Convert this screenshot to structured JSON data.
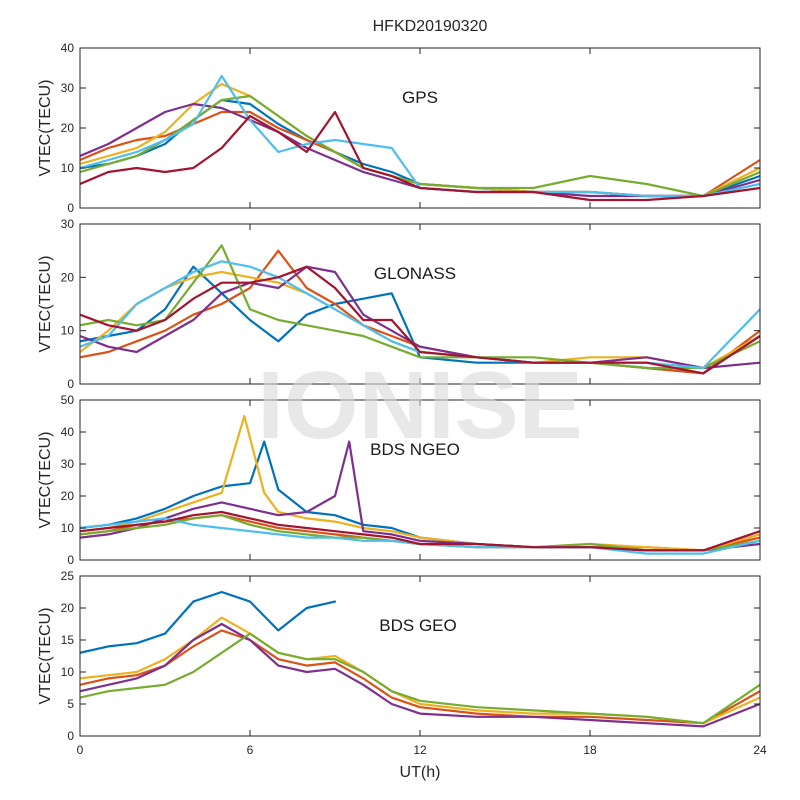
{
  "figure": {
    "title": "HFKD20190320",
    "watermark": "IONISE",
    "xlabel": "UT(h)",
    "xlim": [
      0,
      24
    ],
    "xticks": [
      0,
      6,
      12,
      18,
      24
    ]
  },
  "chart_data": [
    {
      "type": "line",
      "panel_label": "GPS",
      "ylabel": "VTEC(TECU)",
      "ylim": [
        0,
        40
      ],
      "yticks": [
        0,
        10,
        20,
        30,
        40
      ],
      "series": [
        {
          "color": "#0072BD",
          "x": [
            0,
            1,
            2,
            3,
            4,
            5,
            6,
            7,
            8,
            9,
            10,
            11,
            12,
            14,
            16,
            18,
            20,
            22,
            24
          ],
          "y": [
            10,
            11,
            13,
            16,
            22,
            27,
            26,
            21,
            17,
            14,
            11,
            9,
            6,
            5,
            4,
            4,
            3,
            3,
            8
          ]
        },
        {
          "color": "#D95319",
          "x": [
            0,
            1,
            2,
            3,
            4,
            5,
            6,
            7,
            8,
            9,
            10,
            11,
            12,
            14,
            16,
            18,
            20,
            22,
            24
          ],
          "y": [
            12,
            15,
            17,
            18,
            21,
            24,
            24,
            20,
            17,
            14,
            10,
            8,
            6,
            5,
            4,
            4,
            3,
            3,
            12
          ]
        },
        {
          "color": "#EDB120",
          "x": [
            0,
            1,
            2,
            3,
            4,
            5,
            6,
            7,
            8,
            9,
            10,
            11,
            12,
            14,
            16,
            18,
            20,
            22,
            24
          ],
          "y": [
            11,
            13,
            15,
            19,
            26,
            31,
            28,
            23,
            18,
            14,
            10,
            8,
            6,
            5,
            4,
            4,
            3,
            3,
            10
          ]
        },
        {
          "color": "#7E2F8E",
          "x": [
            0,
            1,
            2,
            3,
            4,
            5,
            6,
            7,
            8,
            9,
            10,
            11,
            12,
            14,
            16,
            18,
            20,
            22,
            24
          ],
          "y": [
            13,
            16,
            20,
            24,
            26,
            25,
            22,
            19,
            15,
            12,
            9,
            7,
            5,
            4,
            4,
            3,
            3,
            3,
            7
          ]
        },
        {
          "color": "#77AC30",
          "x": [
            0,
            1,
            2,
            3,
            4,
            5,
            6,
            7,
            8,
            9,
            10,
            11,
            12,
            14,
            16,
            18,
            20,
            22,
            24
          ],
          "y": [
            9,
            11,
            13,
            17,
            22,
            27,
            28,
            23,
            18,
            14,
            10,
            8,
            6,
            5,
            5,
            8,
            6,
            3,
            9
          ]
        },
        {
          "color": "#4DBEEE",
          "x": [
            0,
            1,
            2,
            3,
            4,
            5,
            6,
            7,
            8,
            9,
            10,
            11,
            12,
            14,
            16,
            18,
            20,
            22,
            24
          ],
          "y": [
            10,
            12,
            14,
            17,
            21,
            33,
            22,
            14,
            16,
            17,
            16,
            15,
            5,
            4,
            4,
            4,
            3,
            3,
            6
          ]
        },
        {
          "color": "#A2142F",
          "x": [
            0,
            1,
            2,
            3,
            4,
            5,
            6,
            7,
            8,
            9,
            10,
            11,
            12,
            14,
            16,
            18,
            20,
            22,
            24
          ],
          "y": [
            6,
            9,
            10,
            9,
            10,
            15,
            23,
            19,
            14,
            24,
            10,
            8,
            5,
            4,
            4,
            2,
            2,
            3,
            5
          ]
        }
      ]
    },
    {
      "type": "line",
      "panel_label": "GLONASS",
      "ylabel": "VTEC(TECU)",
      "ylim": [
        0,
        30
      ],
      "yticks": [
        0,
        10,
        20,
        30
      ],
      "series": [
        {
          "color": "#0072BD",
          "x": [
            0,
            1,
            2,
            3,
            4,
            5,
            6,
            7,
            8,
            9,
            10,
            11,
            12,
            14,
            16,
            18,
            20,
            22,
            24
          ],
          "y": [
            8,
            9,
            10,
            14,
            22,
            17,
            12,
            8,
            13,
            15,
            16,
            17,
            5,
            4,
            4,
            4,
            3,
            2,
            9
          ]
        },
        {
          "color": "#D95319",
          "x": [
            0,
            1,
            2,
            3,
            4,
            5,
            6,
            7,
            8,
            9,
            10,
            11,
            12,
            14,
            16,
            18,
            20,
            22,
            24
          ],
          "y": [
            5,
            6,
            8,
            10,
            13,
            15,
            18,
            25,
            18,
            15,
            11,
            9,
            7,
            5,
            4,
            4,
            3,
            2,
            10
          ]
        },
        {
          "color": "#EDB120",
          "x": [
            0,
            1,
            2,
            3,
            4,
            5,
            6,
            7,
            8,
            9,
            10,
            11,
            12,
            14,
            16,
            18,
            20,
            22,
            24
          ],
          "y": [
            6,
            10,
            15,
            18,
            20,
            21,
            20,
            19,
            17,
            14,
            11,
            8,
            6,
            5,
            4,
            5,
            5,
            3,
            9
          ]
        },
        {
          "color": "#7E2F8E",
          "x": [
            0,
            1,
            2,
            3,
            4,
            5,
            6,
            7,
            8,
            9,
            10,
            11,
            12,
            14,
            16,
            18,
            20,
            22,
            24
          ],
          "y": [
            9,
            7,
            6,
            9,
            12,
            17,
            19,
            18,
            22,
            21,
            13,
            10,
            7,
            5,
            4,
            4,
            5,
            3,
            4
          ]
        },
        {
          "color": "#77AC30",
          "x": [
            0,
            1,
            2,
            3,
            4,
            5,
            6,
            7,
            8,
            9,
            10,
            11,
            12,
            14,
            16,
            18,
            20,
            22,
            24
          ],
          "y": [
            11,
            12,
            11,
            12,
            19,
            26,
            14,
            12,
            11,
            10,
            9,
            7,
            5,
            5,
            5,
            4,
            3,
            3,
            8
          ]
        },
        {
          "color": "#4DBEEE",
          "x": [
            0,
            1,
            2,
            3,
            4,
            5,
            6,
            7,
            8,
            9,
            10,
            11,
            12,
            14,
            16,
            18,
            20,
            22,
            24
          ],
          "y": [
            7,
            9,
            15,
            18,
            21,
            23,
            22,
            20,
            17,
            14,
            11,
            8,
            6,
            5,
            4,
            4,
            4,
            3,
            14
          ]
        },
        {
          "color": "#A2142F",
          "x": [
            0,
            1,
            2,
            3,
            4,
            5,
            6,
            7,
            8,
            9,
            10,
            11,
            12,
            14,
            16,
            18,
            20,
            22,
            24
          ],
          "y": [
            13,
            11,
            10,
            12,
            16,
            19,
            19,
            20,
            22,
            18,
            12,
            12,
            6,
            5,
            4,
            4,
            4,
            2,
            9
          ]
        }
      ]
    },
    {
      "type": "line",
      "panel_label": "BDS NGEO",
      "ylabel": "VTEC(TECU)",
      "ylim": [
        0,
        50
      ],
      "yticks": [
        0,
        10,
        20,
        30,
        40,
        50
      ],
      "series": [
        {
          "color": "#0072BD",
          "x": [
            0,
            1,
            2,
            3,
            4,
            5,
            6,
            6.5,
            7,
            8,
            9,
            10,
            11,
            12,
            14,
            16,
            18,
            20,
            22,
            24
          ],
          "y": [
            10,
            11,
            13,
            16,
            20,
            23,
            24,
            37,
            22,
            15,
            14,
            11,
            10,
            7,
            5,
            4,
            4,
            3,
            3,
            8
          ]
        },
        {
          "color": "#D95319",
          "x": [
            0,
            1,
            2,
            3,
            4,
            5,
            6,
            7,
            8,
            9,
            10,
            11,
            12,
            14,
            16,
            18,
            20,
            22,
            24
          ],
          "y": [
            8,
            9,
            11,
            12,
            13,
            14,
            12,
            10,
            9,
            8,
            7,
            6,
            5,
            4,
            4,
            4,
            4,
            3,
            7
          ]
        },
        {
          "color": "#EDB120",
          "x": [
            0,
            1,
            2,
            3,
            4,
            5,
            5.8,
            6.5,
            7,
            8,
            9,
            10,
            11,
            12,
            14,
            16,
            18,
            20,
            22,
            24
          ],
          "y": [
            9,
            10,
            12,
            15,
            18,
            21,
            45,
            21,
            15,
            13,
            12,
            10,
            9,
            7,
            5,
            4,
            5,
            4,
            3,
            8
          ]
        },
        {
          "color": "#7E2F8E",
          "x": [
            0,
            1,
            2,
            3,
            4,
            5,
            6,
            7,
            8,
            9,
            9.5,
            10,
            11,
            12,
            14,
            16,
            18,
            20,
            22,
            24
          ],
          "y": [
            7,
            8,
            10,
            13,
            16,
            18,
            16,
            14,
            15,
            20,
            37,
            9,
            8,
            6,
            5,
            4,
            4,
            3,
            3,
            5
          ]
        },
        {
          "color": "#77AC30",
          "x": [
            0,
            1,
            2,
            3,
            4,
            5,
            6,
            7,
            8,
            9,
            10,
            11,
            12,
            14,
            16,
            18,
            20,
            22,
            24
          ],
          "y": [
            8,
            9,
            10,
            11,
            13,
            14,
            11,
            9,
            8,
            7,
            7,
            6,
            5,
            4,
            4,
            5,
            3,
            3,
            6
          ]
        },
        {
          "color": "#4DBEEE",
          "x": [
            0,
            1,
            2,
            3,
            4,
            5,
            6,
            7,
            8,
            9,
            10,
            11,
            12,
            14,
            16,
            18,
            20,
            22,
            24
          ],
          "y": [
            10,
            11,
            12,
            13,
            11,
            10,
            9,
            8,
            7,
            7,
            6,
            6,
            5,
            4,
            4,
            4,
            2,
            2,
            6
          ]
        },
        {
          "color": "#A2142F",
          "x": [
            0,
            1,
            2,
            3,
            4,
            5,
            6,
            7,
            8,
            9,
            10,
            11,
            12,
            14,
            16,
            18,
            20,
            22,
            24
          ],
          "y": [
            9,
            10,
            11,
            12,
            14,
            15,
            13,
            11,
            10,
            9,
            8,
            7,
            5,
            5,
            4,
            4,
            3,
            3,
            9
          ]
        }
      ]
    },
    {
      "type": "line",
      "panel_label": "BDS GEO",
      "ylabel": "VTEC(TECU)",
      "ylim": [
        0,
        25
      ],
      "yticks": [
        0,
        5,
        10,
        15,
        20,
        25
      ],
      "series": [
        {
          "color": "#0072BD",
          "x": [
            0,
            1,
            2,
            3,
            4,
            5,
            6,
            7,
            8,
            9
          ],
          "y": [
            13,
            14,
            14.5,
            16,
            21,
            22.5,
            21,
            16.5,
            20,
            21
          ]
        },
        {
          "color": "#D95319",
          "x": [
            0,
            1,
            2,
            3,
            4,
            5,
            6,
            7,
            8,
            9,
            10,
            11,
            12,
            14,
            16,
            18,
            20,
            22,
            24
          ],
          "y": [
            8,
            9,
            9.5,
            11,
            14,
            16.5,
            15,
            12,
            11,
            11.5,
            9,
            6,
            4.5,
            3.5,
            3,
            3,
            2.5,
            2,
            7
          ]
        },
        {
          "color": "#EDB120",
          "x": [
            0,
            1,
            2,
            3,
            4,
            5,
            6,
            7,
            8,
            9,
            10,
            11,
            12,
            14,
            16,
            18,
            20,
            22,
            24
          ],
          "y": [
            9,
            9.5,
            10,
            12,
            15,
            18.5,
            16,
            13,
            12,
            12.5,
            10,
            7,
            5,
            4,
            3.5,
            3.5,
            3,
            2,
            6
          ]
        },
        {
          "color": "#7E2F8E",
          "x": [
            0,
            1,
            2,
            3,
            4,
            5,
            6,
            7,
            8,
            9,
            10,
            11,
            12,
            14,
            16,
            18,
            20,
            22,
            24
          ],
          "y": [
            7,
            8,
            9,
            11,
            15,
            17.5,
            15,
            11,
            10,
            10.5,
            8,
            5,
            3.5,
            3,
            3,
            2.5,
            2,
            1.5,
            5
          ]
        },
        {
          "color": "#77AC30",
          "x": [
            0,
            1,
            2,
            3,
            4,
            5,
            6,
            7,
            8,
            9,
            10,
            11,
            12,
            14,
            16,
            18,
            20,
            22,
            24
          ],
          "y": [
            6,
            7,
            7.5,
            8,
            10,
            13,
            16,
            13,
            12,
            12,
            10,
            7,
            5.5,
            4.5,
            4,
            3.5,
            3,
            2,
            8
          ]
        }
      ]
    }
  ]
}
